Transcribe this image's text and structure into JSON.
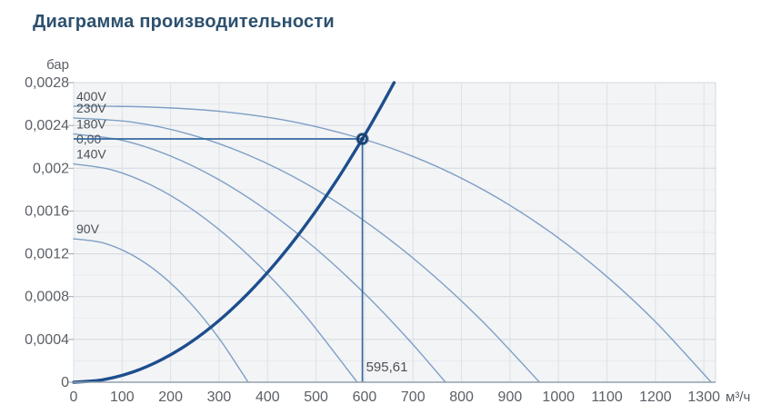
{
  "page": {
    "title": "Диаграмма производительности"
  },
  "chart_data": {
    "type": "line",
    "title": "Диаграмма производительности",
    "xlabel": "м³/ч",
    "ylabel": "бар",
    "xlim": [
      0,
      1324
    ],
    "ylim": [
      0,
      0.0028
    ],
    "grid": {
      "x_step": 100,
      "y_minor_step": 0.0002,
      "y_major_step": 0.0004
    },
    "x_ticks": [
      0,
      100,
      200,
      300,
      400,
      500,
      600,
      700,
      800,
      900,
      1000,
      1100,
      1200,
      1300
    ],
    "x_tick_labels": [
      "0",
      "100",
      "200",
      "300",
      "400",
      "500",
      "600",
      "700",
      "800",
      "900",
      "1000",
      "1100",
      "1200",
      "1300"
    ],
    "y_ticks": [
      0,
      0.0004,
      0.0008,
      0.0012,
      0.0016,
      0.002,
      0.0024,
      0.0028
    ],
    "y_tick_labels": [
      "0",
      "0,0004",
      "0,0008",
      "0,0012",
      "0,0016",
      "0,002",
      "0,0024",
      "0,0028"
    ],
    "legend_position": "labels-at-curve-start",
    "series": [
      {
        "name": "400V",
        "points": [
          [
            0,
            0.00258
          ],
          [
            150,
            0.002573
          ],
          [
            300,
            0.002532
          ],
          [
            450,
            0.002437
          ],
          [
            595.61,
            0.002274
          ],
          [
            700,
            0.00211
          ],
          [
            800,
            0.001906
          ],
          [
            900,
            0.001653
          ],
          [
            1000,
            0.001348
          ],
          [
            1100,
            0.000987
          ],
          [
            1200,
            0.000565
          ],
          [
            1315,
            0
          ]
        ]
      },
      {
        "name": "230V",
        "points": [
          [
            0,
            0.00247
          ],
          [
            120,
            0.002431
          ],
          [
            240,
            0.002316
          ],
          [
            360,
            0.002123
          ],
          [
            480,
            0.001854
          ],
          [
            600,
            0.001507
          ],
          [
            720,
            0.001084
          ],
          [
            840,
            0.000583
          ],
          [
            961,
            0
          ]
        ]
      },
      {
        "name": "180V",
        "points": [
          [
            0,
            0.00232
          ],
          [
            100,
            0.002261
          ],
          [
            200,
            0.002114
          ],
          [
            300,
            0.001892
          ],
          [
            400,
            0.001601
          ],
          [
            500,
            0.001246
          ],
          [
            600,
            0.000829
          ],
          [
            690,
            0.000402
          ],
          [
            767,
            0
          ]
        ]
      },
      {
        "name": "140V",
        "points": [
          [
            0,
            0.00204
          ],
          [
            80,
            0.001983
          ],
          [
            160,
            0.001842
          ],
          [
            240,
            0.00163
          ],
          [
            320,
            0.001351
          ],
          [
            400,
            0.001011
          ],
          [
            480,
            0.000611
          ],
          [
            585,
            0
          ]
        ]
      },
      {
        "name": "90V",
        "points": [
          [
            0,
            0.00134
          ],
          [
            60,
            0.001303
          ],
          [
            120,
            0.001191
          ],
          [
            180,
            0.001005
          ],
          [
            240,
            0.000744
          ],
          [
            300,
            0.000409
          ],
          [
            360,
            0
          ]
        ]
      }
    ],
    "system_curve": {
      "name": "system-resistance-curve",
      "points": [
        [
          0,
          0
        ],
        [
          60,
          2.3e-05
        ],
        [
          120,
          9.2e-05
        ],
        [
          180,
          0.000208
        ],
        [
          240,
          0.000369
        ],
        [
          300,
          0.000577
        ],
        [
          360,
          0.000831
        ],
        [
          420,
          0.001131
        ],
        [
          480,
          0.001477
        ],
        [
          540,
          0.001869
        ],
        [
          595.61,
          0.002274
        ],
        [
          630,
          0.002544
        ],
        [
          661,
          0.0028
        ]
      ]
    },
    "operating_point": {
      "x": 595.61,
      "y": 0.002274,
      "flow_label": "595,61",
      "pressure_label": "0,00"
    }
  },
  "colors": {
    "title_text": "#2d506e",
    "fan_curve": "#7e9fc5",
    "system_curve": "#1d4e8d",
    "op_lines": "#35689f",
    "marker": "#16406f",
    "plot_bg": "#f3f4f6",
    "grid_minor": "#e7e9ec",
    "grid_major": "#d3d8df",
    "grid_vertical": "#dde0e4",
    "axis_line": "#93a0ad",
    "tick_mark": "#9aa3ad",
    "tick_text": "#5b6066",
    "curve_label_text": "#4a5057"
  }
}
